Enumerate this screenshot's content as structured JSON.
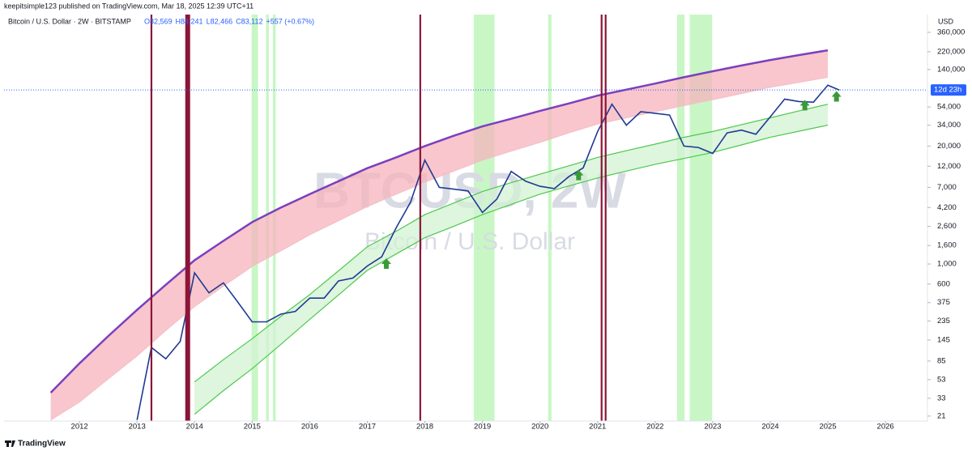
{
  "header": {
    "publisher": "keepitsimple123 published on TradingView.com, Mar 18, 2025 12:39 UTC+11",
    "footer": "TradingView"
  },
  "chart_data": [
    {
      "type": "line",
      "title": "Bitcoin / U.S. Dollar · 2W · BITSTAMP",
      "ohlc": [
        "O82,569",
        "H84,241",
        "L82,466",
        "C83,112",
        "+557 (+0.67%)"
      ],
      "watermark": "BTCUSD, 2W",
      "watermark_subtitle": "Bitcoin / U.S. Dollar",
      "currency": "USD",
      "countdown": "12d 23h",
      "log_scale": true,
      "color": "#1f3a93",
      "xlim": [
        2010.69,
        2026.73
      ],
      "xticks": [
        2012,
        2013,
        2014,
        2015,
        2016,
        2017,
        2018,
        2019,
        2020,
        2021,
        2022,
        2023,
        2024,
        2025,
        2026
      ],
      "ylim": [
        18.5,
        565000
      ],
      "yticks": [
        21,
        33,
        53,
        85,
        145,
        235,
        375,
        600,
        {
          "value": 1000,
          "label": "1,000"
        },
        {
          "value": 1600,
          "label": "1,600"
        },
        {
          "value": 2600,
          "label": "2,600"
        },
        {
          "value": 4200,
          "label": "4,200"
        },
        {
          "value": 7000,
          "label": "7,000"
        },
        {
          "value": 12000,
          "label": "12,000"
        },
        {
          "value": 20000,
          "label": "20,000"
        },
        {
          "value": 34000,
          "label": "34,000"
        },
        {
          "value": 54000,
          "label": "54,000"
        },
        {
          "value": 140000,
          "label": "140,000"
        },
        {
          "value": 220000,
          "label": "220,000"
        },
        {
          "value": 360000,
          "label": "360,000"
        }
      ],
      "x": [
        2013.0,
        2013.25,
        2013.5,
        2013.75,
        2014.0,
        2014.25,
        2014.5,
        2014.75,
        2015.0,
        2015.25,
        2015.5,
        2015.75,
        2016.0,
        2016.25,
        2016.5,
        2016.75,
        2017.0,
        2017.25,
        2017.5,
        2017.75,
        2018.0,
        2018.25,
        2018.5,
        2018.75,
        2019.0,
        2019.25,
        2019.5,
        2019.75,
        2020.0,
        2020.25,
        2020.5,
        2020.75,
        2021.0,
        2021.25,
        2021.5,
        2021.75,
        2022.0,
        2022.25,
        2022.5,
        2022.75,
        2023.0,
        2023.25,
        2023.5,
        2023.75,
        2024.0,
        2024.25,
        2024.5,
        2024.75,
        2025.0,
        2025.2
      ],
      "values": [
        19,
        120,
        90,
        140,
        800,
        480,
        620,
        380,
        230,
        230,
        280,
        300,
        420,
        420,
        650,
        700,
        950,
        1200,
        2500,
        4800,
        14000,
        7000,
        6700,
        6400,
        3700,
        5200,
        10500,
        8200,
        7200,
        6800,
        9200,
        11500,
        29000,
        58000,
        34000,
        48000,
        46000,
        44000,
        20000,
        19300,
        16600,
        28000,
        30000,
        27000,
        42000,
        66000,
        62000,
        61000,
        94000,
        83112
      ],
      "vlines": {
        "color": "#8b1538",
        "x": [
          2013.25,
          2013.88,
          2017.92,
          2021.07,
          2021.14
        ]
      },
      "zones": {
        "color": "#c8f7c5",
        "x": [
          [
            2014.99,
            2015.1
          ],
          [
            2015.24,
            2015.29
          ],
          [
            2015.36,
            2015.41
          ],
          [
            2018.85,
            2019.21
          ],
          [
            2020.14,
            2020.2
          ],
          [
            2022.38,
            2022.51
          ],
          [
            2022.6,
            2022.99
          ]
        ]
      },
      "markers": {
        "color": "#3a9a3a",
        "x": [
          2017.33,
          2020.67,
          2024.6,
          2025.15
        ],
        "y": [
          1000,
          9500,
          56000,
          70000
        ]
      }
    },
    {
      "type": "band",
      "xlim": [
        2010.69,
        2026.73
      ],
      "ylim": [
        18.5,
        565000
      ],
      "log_scale": true,
      "x": [
        2011.5,
        2012,
        2012.5,
        2013,
        2013.5,
        2014,
        2014.5,
        2015,
        2015.5,
        2016,
        2016.5,
        2017,
        2017.5,
        2018,
        2018.5,
        2019,
        2019.5,
        2020,
        2020.5,
        2021,
        2021.5,
        2022,
        2022.5,
        2023,
        2023.5,
        2024,
        2024.5,
        2025,
        2025.5
      ],
      "series": [
        {
          "color": "#7b3fbf",
          "fill": "#f6b3bb",
          "values": [
            38,
            80,
            160,
            312,
            590,
            1100,
            1800,
            2900,
            4200,
            5900,
            8200,
            11400,
            15000,
            20000,
            26000,
            33000,
            40000,
            49000,
            59000,
            72000,
            84000,
            98000,
            115000,
            134000,
            155000,
            178000,
            202000,
            228000,
            null
          ]
        },
        {
          "color": "#f1c2c8",
          "values": [
            19,
            30,
            54,
            97,
            185,
            340,
            570,
            940,
            1400,
            2100,
            3000,
            4300,
            5900,
            8000,
            10600,
            14000,
            17600,
            22000,
            28000,
            35000,
            41000,
            48000,
            56000,
            65000,
            76000,
            89000,
            101000,
            115000,
            null
          ]
        },
        {
          "color": "#4cc94c",
          "fill": "#d3f2d3",
          "values": [
            null,
            null,
            null,
            null,
            null,
            50,
            88,
            150,
            265,
            460,
            840,
            1550,
            2300,
            3500,
            4700,
            6300,
            7900,
            9800,
            12100,
            15000,
            17800,
            21000,
            25000,
            29000,
            34500,
            41000,
            49000,
            58000,
            null
          ]
        },
        {
          "color": "#4cc94c",
          "values": [
            null,
            null,
            null,
            null,
            null,
            22,
            40,
            70,
            130,
            245,
            455,
            850,
            1290,
            1950,
            2600,
            3500,
            4550,
            5900,
            7250,
            8900,
            10600,
            12600,
            14600,
            17000,
            20600,
            25000,
            29200,
            34000,
            null
          ]
        }
      ]
    }
  ]
}
